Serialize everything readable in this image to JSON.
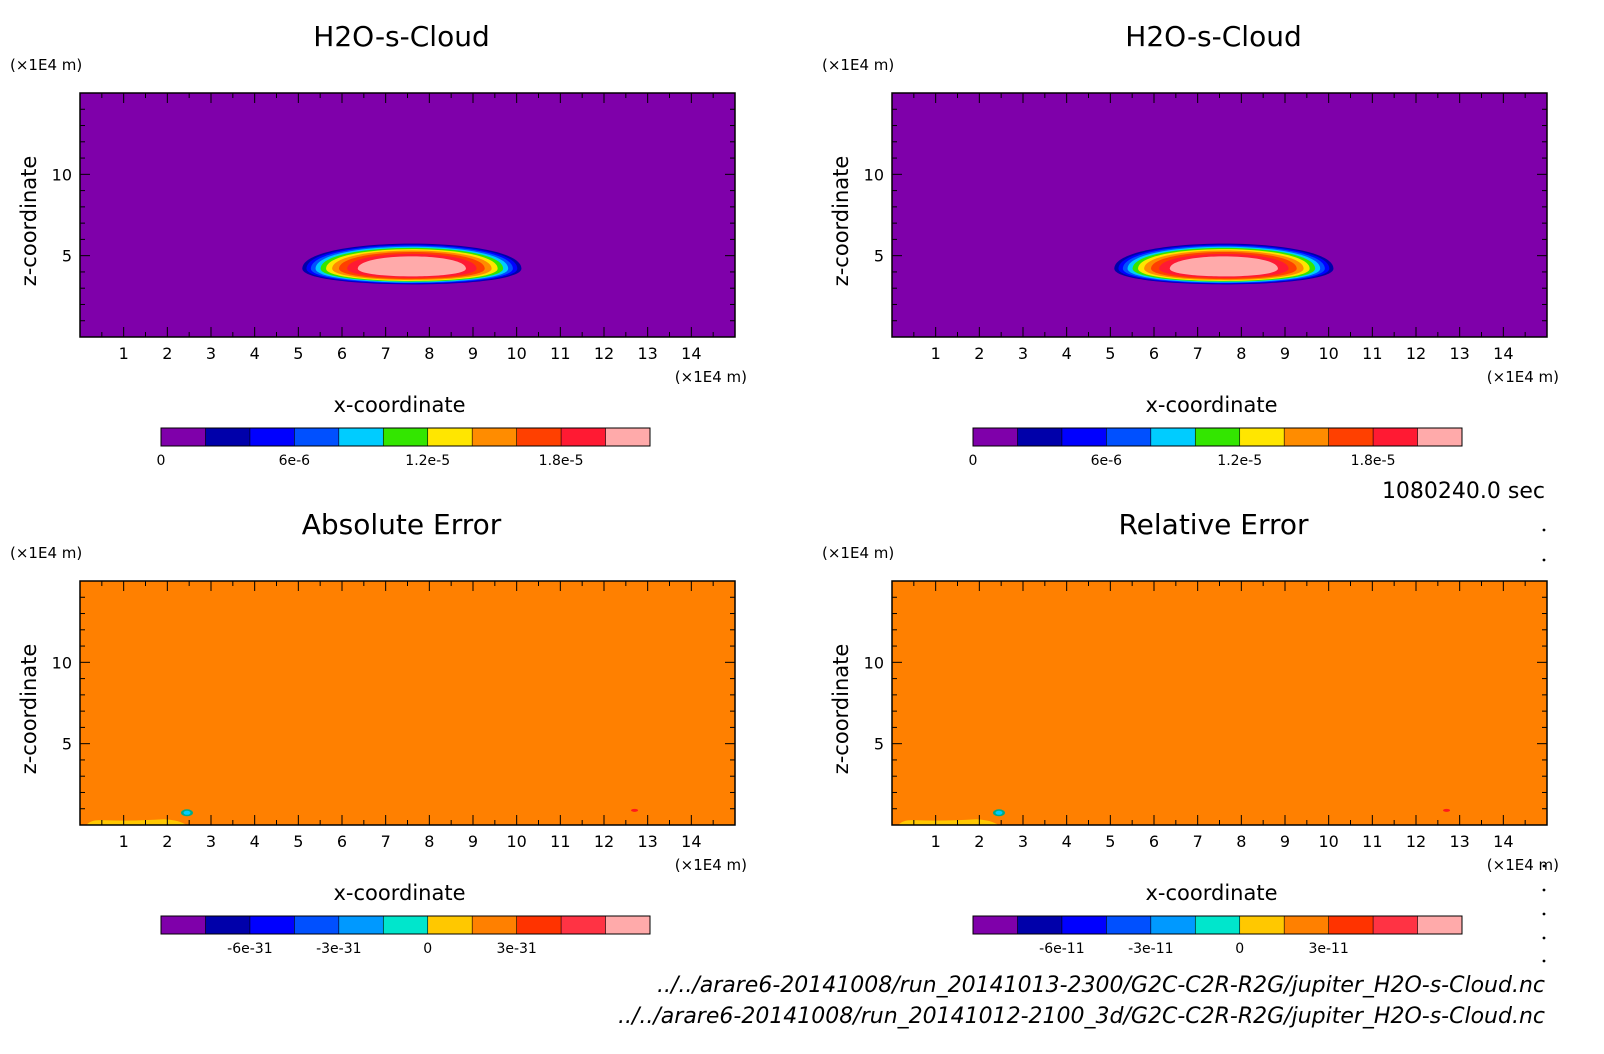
{
  "time_label": "1080240.0 sec",
  "file_labels": [
    "../../arare6-20141008/run_20141013-2300/G2C-C2R-R2G/jupiter_H2O-s-Cloud.nc",
    "../../arare6-20141008/run_20141012-2100_3d/G2C-C2R-R2G/jupiter_H2O-s-Cloud.nc"
  ],
  "chart_data": [
    {
      "type": "heatmap",
      "title": "H2O-s-Cloud",
      "xlabel": "x-coordinate",
      "ylabel": "z-coordinate",
      "x_unit": "(×1E4 m)",
      "y_unit": "(×1E4 m)",
      "xlim": [
        0,
        15
      ],
      "ylim": [
        0,
        15
      ],
      "x_ticks": [
        "1",
        "2",
        "3",
        "4",
        "5",
        "6",
        "7",
        "8",
        "9",
        "10",
        "11",
        "12",
        "13",
        "14"
      ],
      "y_ticks": [
        "5",
        "10"
      ],
      "background_color": "#7f00aa",
      "field": {
        "kind": "blob",
        "center_x": 7.6,
        "center_z": 4.2,
        "radius_x": 2.6,
        "radius_z": 1.85,
        "peak": 2e-05
      },
      "colorbar": {
        "levels": [
          0,
          2e-06,
          4e-06,
          6e-06,
          8e-06,
          1e-05,
          1.2e-05,
          1.4e-05,
          1.6e-05,
          1.8e-05,
          2e-05,
          2.2e-05
        ],
        "colors": [
          "#7f00aa",
          "#0000aa",
          "#0000ff",
          "#0050ff",
          "#00ccff",
          "#33e600",
          "#ffe600",
          "#ff8c00",
          "#ff4000",
          "#ff1a33",
          "#ffaaaa"
        ],
        "tick_labels": [
          "0",
          "6e-6",
          "1.2e-5",
          "1.8e-5"
        ],
        "tick_values": [
          0,
          6e-06,
          1.2e-05,
          1.8e-05
        ]
      }
    },
    {
      "type": "heatmap",
      "title": "H2O-s-Cloud",
      "xlabel": "x-coordinate",
      "ylabel": "z-coordinate",
      "x_unit": "(×1E4 m)",
      "y_unit": "(×1E4 m)",
      "xlim": [
        0,
        15
      ],
      "ylim": [
        0,
        15
      ],
      "x_ticks": [
        "1",
        "2",
        "3",
        "4",
        "5",
        "6",
        "7",
        "8",
        "9",
        "10",
        "11",
        "12",
        "13",
        "14"
      ],
      "y_ticks": [
        "5",
        "10"
      ],
      "background_color": "#7f00aa",
      "field": {
        "kind": "blob",
        "center_x": 7.6,
        "center_z": 4.2,
        "radius_x": 2.6,
        "radius_z": 1.85,
        "peak": 2e-05
      },
      "colorbar": {
        "levels": [
          0,
          2e-06,
          4e-06,
          6e-06,
          8e-06,
          1e-05,
          1.2e-05,
          1.4e-05,
          1.6e-05,
          1.8e-05,
          2e-05,
          2.2e-05
        ],
        "colors": [
          "#7f00aa",
          "#0000aa",
          "#0000ff",
          "#0050ff",
          "#00ccff",
          "#33e600",
          "#ffe600",
          "#ff8c00",
          "#ff4000",
          "#ff1a33",
          "#ffaaaa"
        ],
        "tick_labels": [
          "0",
          "6e-6",
          "1.2e-5",
          "1.8e-5"
        ],
        "tick_values": [
          0,
          6e-06,
          1.2e-05,
          1.8e-05
        ]
      }
    },
    {
      "type": "heatmap",
      "title": "Absolute Error",
      "xlabel": "x-coordinate",
      "ylabel": "z-coordinate",
      "x_unit": "(×1E4 m)",
      "y_unit": "(×1E4 m)",
      "xlim": [
        0,
        15
      ],
      "ylim": [
        0,
        15
      ],
      "x_ticks": [
        "1",
        "2",
        "3",
        "4",
        "5",
        "6",
        "7",
        "8",
        "9",
        "10",
        "11",
        "12",
        "13",
        "14"
      ],
      "y_ticks": [
        "5",
        "10"
      ],
      "background_color": "#ff8000",
      "field": {
        "kind": "error",
        "bottom_band": {
          "x_from": 0.15,
          "x_to": 2.2,
          "z_top": 0.35,
          "color": "#ffc800"
        },
        "spot_blue": {
          "x": 2.45,
          "z": 0.75,
          "color": "#00ccff"
        },
        "spot_red": {
          "x": 12.7,
          "z": 0.9,
          "color": "#ff1a1a"
        }
      },
      "colorbar": {
        "levels": [
          -9e-31,
          -7.5e-31,
          -6e-31,
          -4.5e-31,
          -3e-31,
          -1.5e-31,
          0,
          1.5e-31,
          3e-31,
          4.5e-31,
          6e-31,
          7.5e-31
        ],
        "colors": [
          "#7f00aa",
          "#0000aa",
          "#0000ff",
          "#0050ff",
          "#0099ff",
          "#00e6cc",
          "#ffc800",
          "#ff8000",
          "#ff3300",
          "#ff3344",
          "#ffaaaa"
        ],
        "tick_labels": [
          "-6e-31",
          "-3e-31",
          "0",
          "3e-31"
        ],
        "tick_values": [
          -6e-31,
          -3e-31,
          0,
          3e-31
        ]
      }
    },
    {
      "type": "heatmap",
      "title": "Relative Error",
      "xlabel": "x-coordinate",
      "ylabel": "z-coordinate",
      "x_unit": "(×1E4 m)",
      "y_unit": "(×1E4 m)",
      "xlim": [
        0,
        15
      ],
      "ylim": [
        0,
        15
      ],
      "x_ticks": [
        "1",
        "2",
        "3",
        "4",
        "5",
        "6",
        "7",
        "8",
        "9",
        "10",
        "11",
        "12",
        "13",
        "14"
      ],
      "y_ticks": [
        "5",
        "10"
      ],
      "background_color": "#ff8000",
      "field": {
        "kind": "error",
        "bottom_band": {
          "x_from": 0.15,
          "x_to": 2.2,
          "z_top": 0.35,
          "color": "#ffc800"
        },
        "spot_blue": {
          "x": 2.45,
          "z": 0.75,
          "color": "#00ccff"
        },
        "spot_red": {
          "x": 12.7,
          "z": 0.9,
          "color": "#ff1a1a"
        }
      },
      "colorbar": {
        "levels": [
          -9e-11,
          -7.5e-11,
          -6e-11,
          -4.5e-11,
          -3e-11,
          -1.5e-11,
          0,
          1.5e-11,
          3e-11,
          4.5e-11,
          6e-11,
          7.5e-11
        ],
        "colors": [
          "#7f00aa",
          "#0000aa",
          "#0000ff",
          "#0050ff",
          "#0099ff",
          "#00e6cc",
          "#ffc800",
          "#ff8000",
          "#ff3300",
          "#ff3344",
          "#ffaaaa"
        ],
        "tick_labels": [
          "-6e-11",
          "-3e-11",
          "0",
          "3e-11"
        ],
        "tick_values": [
          -6e-11,
          -3e-11,
          0,
          3e-11
        ]
      }
    }
  ]
}
